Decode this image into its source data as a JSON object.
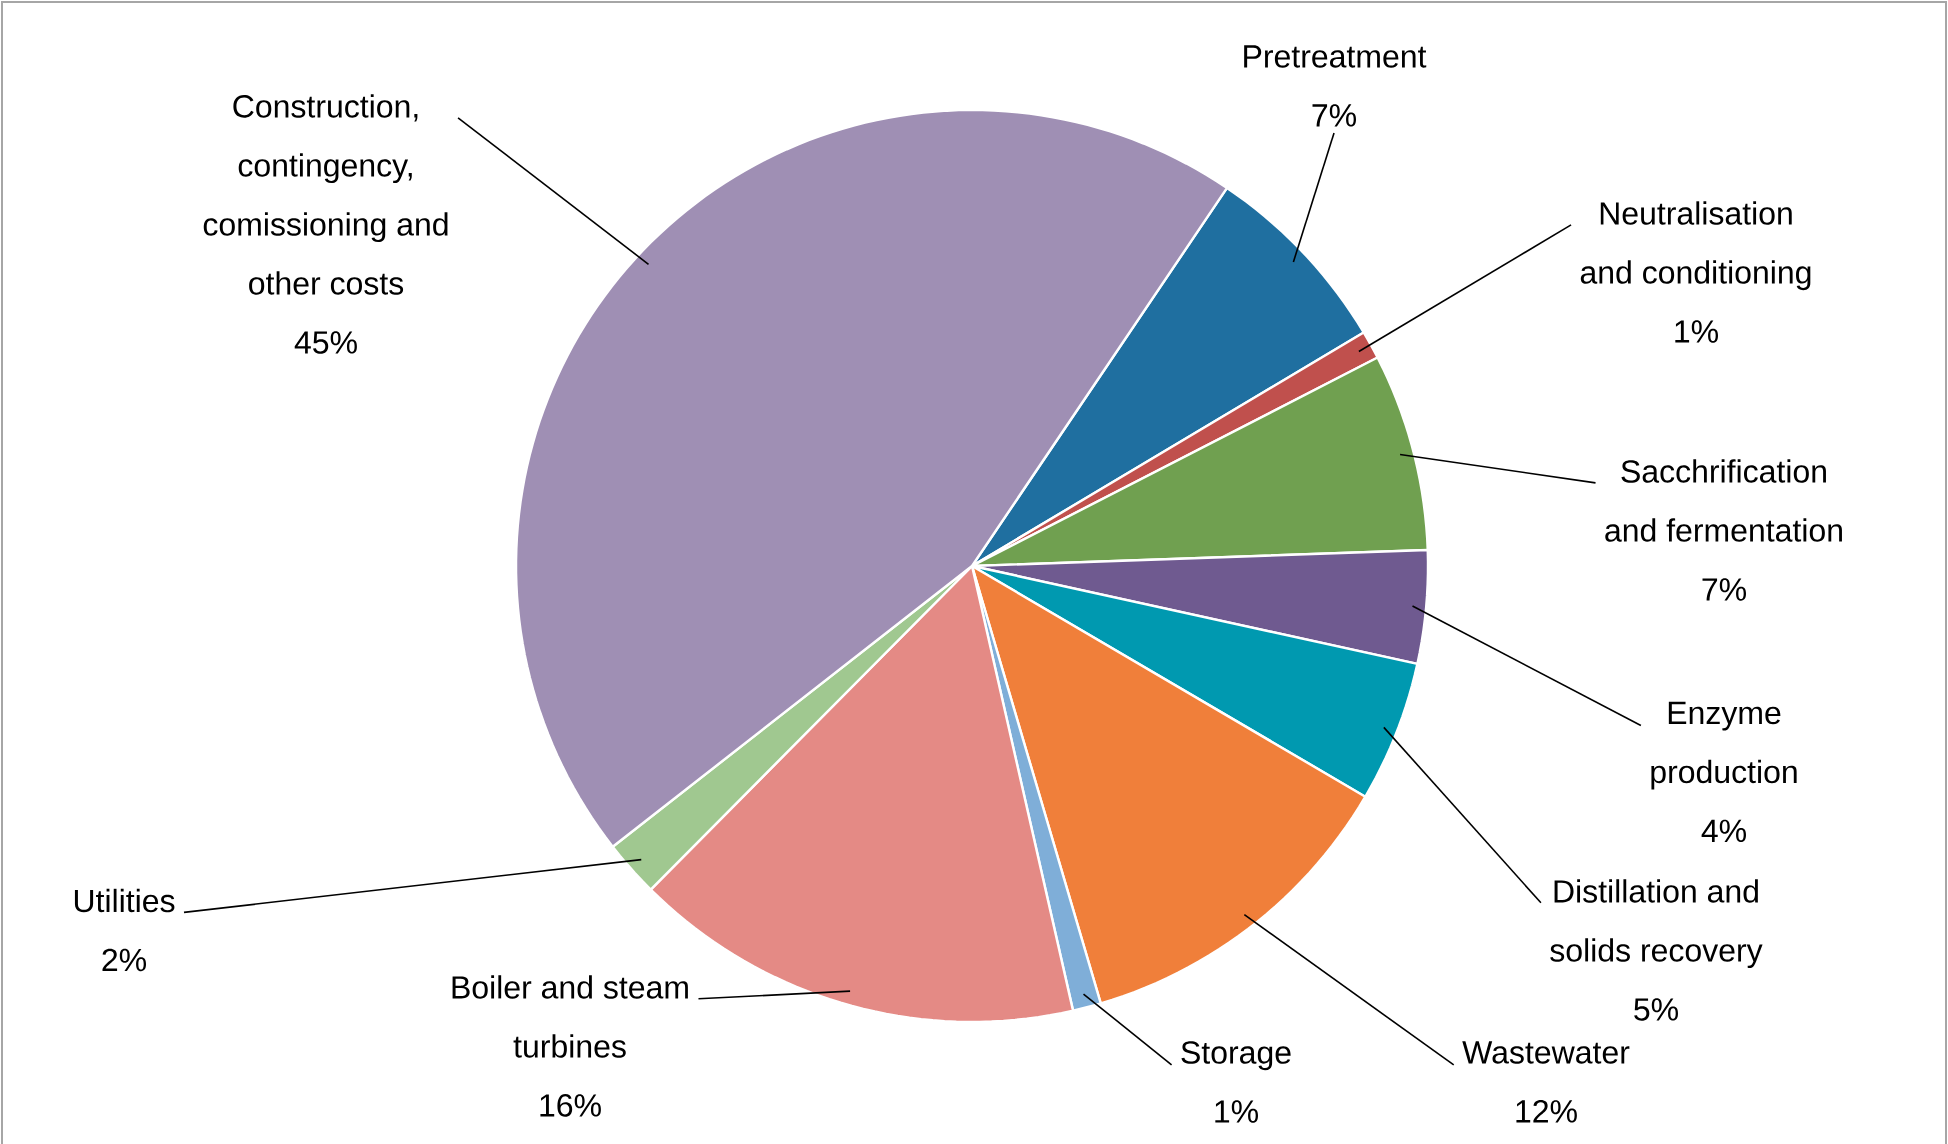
{
  "chart_data": {
    "type": "pie",
    "categories": [
      "Pretreatment",
      "Neutralisation and conditioning",
      "Sacchrification and fermentation",
      "Enzyme production",
      "Distillation and solids recovery",
      "Wastewater",
      "Storage",
      "Boiler and steam turbines",
      "Utilities",
      "Construction, contingency, comissioning and other costs"
    ],
    "values": [
      7,
      1,
      7,
      4,
      5,
      12,
      1,
      16,
      2,
      45
    ],
    "value_labels": [
      "7%",
      "1%",
      "7%",
      "4%",
      "5%",
      "12%",
      "1%",
      "16%",
      "2%",
      "45%"
    ],
    "colors": [
      "#1f6fa0",
      "#c0504d",
      "#70a050",
      "#6f5a90",
      "#0099b0",
      "#f07f3a",
      "#7faed8",
      "#e48a85",
      "#a0c890",
      "#9f8fb4"
    ]
  }
}
